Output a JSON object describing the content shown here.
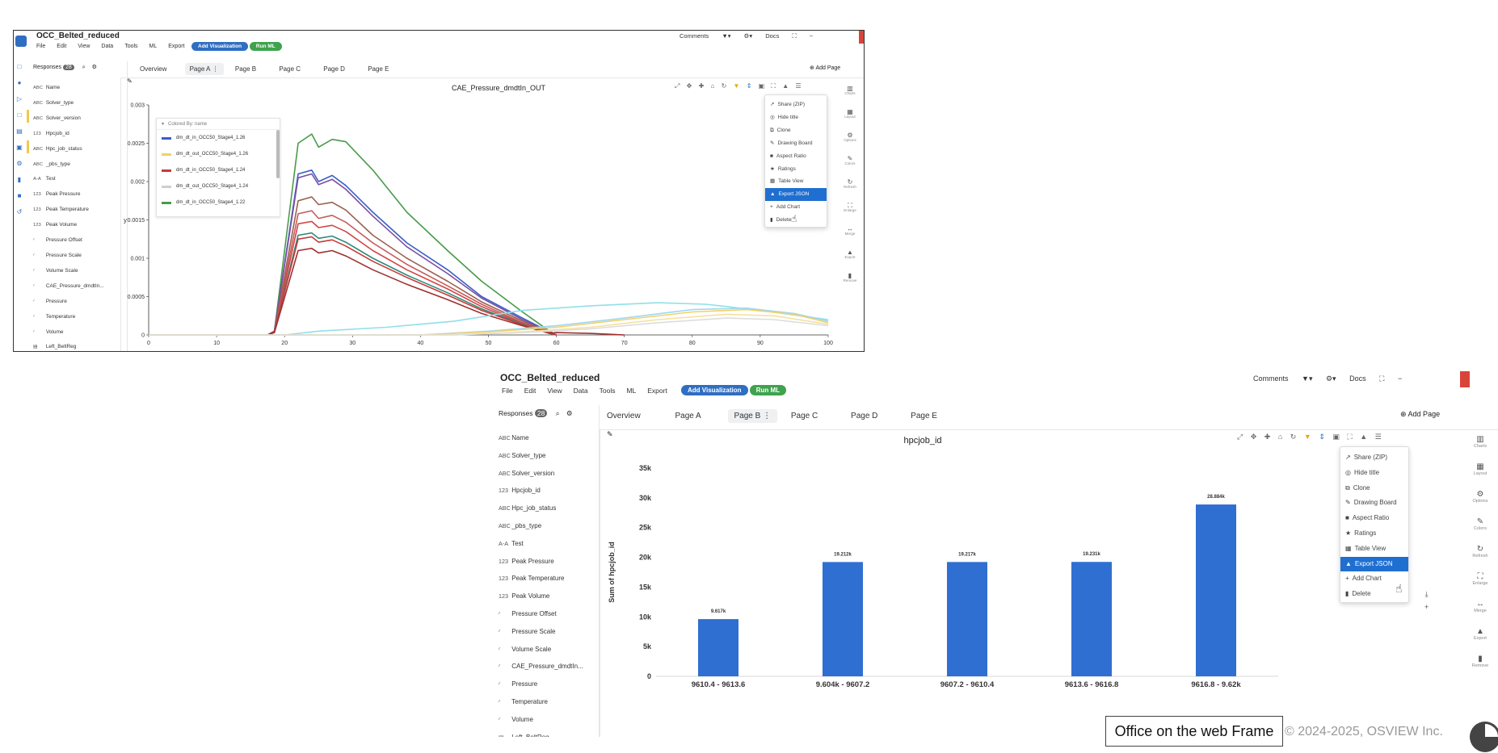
{
  "app": {
    "title": "OCC_Belted_reduced",
    "menu": [
      "File",
      "Edit",
      "View",
      "Data",
      "Tools",
      "ML",
      "Export"
    ],
    "add_visualization": "Add Visualization",
    "run_ml": "Run ML",
    "comments": "Comments",
    "filter": "▼▾",
    "settings": "⚙▾",
    "docs": "Docs",
    "fullscreen": "⛶",
    "minimize": "−",
    "add_page": "Add Page",
    "responses_label": "Responses",
    "responses_count": "28"
  },
  "tabs": [
    "Overview",
    "Page A",
    "Page B",
    "Page C",
    "Page D",
    "Page E"
  ],
  "sidebar_items": [
    {
      "glyph": "ABC",
      "label": "Name"
    },
    {
      "glyph": "ABC",
      "label": "Solver_type"
    },
    {
      "glyph": "ABC",
      "label": "Solver_version"
    },
    {
      "glyph": "123",
      "label": "Hpcjob_id"
    },
    {
      "glyph": "ABC",
      "label": "Hpc_job_status"
    },
    {
      "glyph": "ABC",
      "label": "_pbs_type"
    },
    {
      "glyph": "A-A",
      "label": "Test"
    },
    {
      "glyph": "123",
      "label": "Peak Pressure"
    },
    {
      "glyph": "123",
      "label": "Peak Temperature"
    },
    {
      "glyph": "123",
      "label": "Peak Volume"
    },
    {
      "glyph": "∕",
      "label": "Pressure Offset"
    },
    {
      "glyph": "∕",
      "label": "Pressure Scale"
    },
    {
      "glyph": "∕",
      "label": "Volume Scale"
    },
    {
      "glyph": "∕",
      "label": "CAE_Pressure_dmdtIn..."
    },
    {
      "glyph": "∕",
      "label": "Pressure"
    },
    {
      "glyph": "∕",
      "label": "Temperature"
    },
    {
      "glyph": "∕",
      "label": "Volume"
    },
    {
      "glyph": "▤",
      "label": "Left_BeltReg"
    }
  ],
  "context_menu": [
    {
      "icon": "↗",
      "label": "Share (ZIP)"
    },
    {
      "icon": "◎",
      "label": "Hide title"
    },
    {
      "icon": "⧉",
      "label": "Clone"
    },
    {
      "icon": "✎",
      "label": "Drawing Board"
    },
    {
      "icon": "■",
      "label": "Aspect Ratio"
    },
    {
      "icon": "★",
      "label": "Ratings"
    },
    {
      "icon": "▦",
      "label": "Table View"
    },
    {
      "icon": "▲",
      "label": "Export JSON"
    },
    {
      "icon": "+",
      "label": "Add Chart"
    },
    {
      "icon": "▮",
      "label": "Delete"
    }
  ],
  "right_rail": [
    {
      "icon": "▥",
      "label": "Charts"
    },
    {
      "icon": "▦",
      "label": "Layout"
    },
    {
      "icon": "⚙",
      "label": "Options"
    },
    {
      "icon": "✎",
      "label": "Colors"
    },
    {
      "icon": "↻",
      "label": "Refresh"
    },
    {
      "icon": "⛶",
      "label": "Enlarge"
    },
    {
      "icon": "↔",
      "label": "Merge"
    },
    {
      "icon": "▲",
      "label": "Export"
    },
    {
      "icon": "▮",
      "label": "Remove"
    }
  ],
  "left_rail": [
    "□",
    "●",
    "▷",
    "□",
    "▤",
    "▣",
    "⚙",
    "▮",
    "■",
    "↺"
  ],
  "panel_a": {
    "chart_data": {
      "type": "line",
      "title": "CAE_Pressure_dmdtIn_OUT",
      "ylabel": "y",
      "xlim": [
        0,
        100
      ],
      "ylim": [
        0,
        0.003
      ],
      "x_ticks": [
        0,
        10,
        20,
        30,
        40,
        50,
        60,
        70,
        80,
        90,
        100
      ],
      "y_ticks": [
        0,
        0.0005,
        0.001,
        0.0015,
        0.002,
        0.0025,
        0.003
      ],
      "y_tick_labels": [
        "0",
        "0.0005",
        "0.001",
        "0.0015",
        "0.002",
        "0.0025",
        "0.003"
      ],
      "legend_title": "Colored By: name",
      "legend": [
        {
          "name": "dm_dt_in_OCC50_Stage4_1.26",
          "color": "#3a5fc8"
        },
        {
          "name": "dm_dt_out_OCC50_Stage4_1.26",
          "color": "#f2d06b"
        },
        {
          "name": "dm_dt_in_OCC50_Stage4_1.24",
          "color": "#c83a3a"
        },
        {
          "name": "dm_dt_out_OCC50_Stage4_1.24",
          "color": "#cfcfcf"
        },
        {
          "name": "dm_dt_in_OCC50_Stage4_1.22",
          "color": "#4a9a4a"
        }
      ],
      "series": [
        {
          "color": "#4a9a4a",
          "x": [
            0,
            17.5,
            18.5,
            22,
            24,
            25,
            27,
            29,
            33,
            38,
            44,
            49,
            55,
            59,
            60
          ],
          "y": [
            0,
            0,
            5e-05,
            0.0025,
            0.00262,
            0.00245,
            0.00255,
            0.00252,
            0.00215,
            0.0016,
            0.0011,
            0.0007,
            0.0003,
            5e-05,
            0
          ]
        },
        {
          "color": "#3a5fc8",
          "x": [
            0,
            17.5,
            18.5,
            22,
            24,
            25,
            27,
            29,
            33,
            38,
            44,
            49,
            55,
            59,
            60
          ],
          "y": [
            0,
            0,
            5e-05,
            0.0021,
            0.00215,
            0.002,
            0.00208,
            0.00195,
            0.0016,
            0.0012,
            0.00085,
            0.0005,
            0.00022,
            4e-05,
            0
          ]
        },
        {
          "color": "#7a4fa0",
          "x": [
            0,
            17.5,
            18.5,
            22,
            24,
            25,
            27,
            29,
            33,
            38,
            44,
            49,
            55,
            59,
            60
          ],
          "y": [
            0,
            0,
            5e-05,
            0.00205,
            0.0021,
            0.00196,
            0.00203,
            0.0019,
            0.00155,
            0.00115,
            0.0008,
            0.00048,
            0.0002,
            4e-05,
            0
          ]
        },
        {
          "color": "#9a6050",
          "x": [
            0,
            17.5,
            18.5,
            22,
            24,
            25,
            27,
            29,
            33,
            38,
            44,
            49,
            55,
            59,
            60
          ],
          "y": [
            0,
            0,
            4e-05,
            0.00175,
            0.0018,
            0.0017,
            0.00173,
            0.00163,
            0.0013,
            0.001,
            0.0007,
            0.00043,
            0.00018,
            3e-05,
            0
          ]
        },
        {
          "color": "#c85a5a",
          "x": [
            0,
            17.5,
            18.5,
            22,
            24,
            25,
            27,
            29,
            33,
            38,
            44,
            49,
            55,
            59,
            60
          ],
          "y": [
            0,
            0,
            4e-05,
            0.00158,
            0.00162,
            0.00152,
            0.00156,
            0.00147,
            0.0012,
            0.00092,
            0.00064,
            0.0004,
            0.00016,
            3e-05,
            0
          ]
        },
        {
          "color": "#d04848",
          "x": [
            0,
            17.5,
            18.5,
            22,
            24,
            25,
            27,
            29,
            33,
            38,
            44,
            49,
            55,
            59,
            60
          ],
          "y": [
            0,
            0,
            4e-05,
            0.00145,
            0.00148,
            0.0014,
            0.00143,
            0.00135,
            0.0011,
            0.00085,
            0.0006,
            0.00037,
            0.00015,
            3e-05,
            0
          ]
        },
        {
          "color": "#2f8a7a",
          "x": [
            0,
            17.5,
            18.5,
            22,
            24,
            25,
            27,
            29,
            33,
            38,
            44,
            49,
            55,
            59,
            60
          ],
          "y": [
            0,
            0,
            4e-05,
            0.0013,
            0.00133,
            0.00126,
            0.00129,
            0.00121,
            0.001,
            0.00078,
            0.00055,
            0.00034,
            0.00014,
            2e-05,
            0
          ]
        },
        {
          "color": "#c83a3a",
          "x": [
            0,
            17.5,
            18.5,
            22,
            24,
            25,
            27,
            29,
            33,
            38,
            44,
            49,
            55,
            59,
            60
          ],
          "y": [
            0,
            0,
            4e-05,
            0.00125,
            0.00128,
            0.00121,
            0.00124,
            0.00116,
            0.00096,
            0.00075,
            0.00052,
            0.00032,
            0.00013,
            2e-05,
            0
          ]
        },
        {
          "color": "#a03030",
          "x": [
            0,
            17.5,
            18.5,
            22,
            24,
            25,
            27,
            29,
            33,
            38,
            44,
            49,
            55,
            59,
            60,
            65,
            70
          ],
          "y": [
            0,
            0,
            3e-05,
            0.0011,
            0.00113,
            0.00107,
            0.0011,
            0.00103,
            0.00085,
            0.00066,
            0.00046,
            0.00028,
            0.00012,
            2e-05,
            3e-05,
            2e-05,
            0
          ]
        },
        {
          "color": "#8fe0ea",
          "x": [
            0,
            20,
            25,
            35,
            45,
            55,
            65,
            75,
            82,
            90,
            100
          ],
          "y": [
            0,
            0,
            5e-05,
            0.0001,
            0.00018,
            0.00032,
            0.00038,
            0.00042,
            0.0004,
            0.00032,
            0.0002
          ]
        },
        {
          "color": "#9fd8f0",
          "x": [
            0,
            40,
            50,
            60,
            70,
            80,
            88,
            95,
            100
          ],
          "y": [
            0,
            0,
            5e-05,
            0.00012,
            0.00022,
            0.00033,
            0.00035,
            0.00028,
            0.00018
          ]
        },
        {
          "color": "#f2d06b",
          "x": [
            0,
            40,
            50,
            60,
            70,
            80,
            88,
            95,
            100
          ],
          "y": [
            0,
            0,
            4e-05,
            0.0001,
            0.0002,
            0.0003,
            0.00033,
            0.00027,
            0.00016
          ]
        },
        {
          "color": "#f6e0a0",
          "x": [
            0,
            45,
            55,
            65,
            75,
            85,
            92,
            100
          ],
          "y": [
            0,
            0,
            4e-05,
            0.0001,
            0.0002,
            0.00027,
            0.00025,
            0.00014
          ]
        },
        {
          "color": "#dddddd",
          "x": [
            0,
            45,
            55,
            65,
            75,
            85,
            92,
            100
          ],
          "y": [
            0,
            0,
            3e-05,
            8e-05,
            0.00016,
            0.00022,
            0.0002,
            0.00012
          ]
        }
      ]
    }
  },
  "panel_b": {
    "chart_data": {
      "type": "bar",
      "title": "hpcjob_id",
      "ylabel": "Sum of hpcjob_id",
      "ylim": [
        0,
        35000
      ],
      "y_ticks": [
        0,
        5000,
        10000,
        15000,
        20000,
        25000,
        30000,
        35000
      ],
      "y_tick_labels": [
        "0",
        "5k",
        "10k",
        "15k",
        "20k",
        "25k",
        "30k",
        "35k"
      ],
      "categories": [
        "9610.4 - 9613.6",
        "9.604k - 9607.2",
        "9607.2 - 9610.4",
        "9613.6 - 9616.8",
        "9616.8 - 9.62k"
      ],
      "values": [
        9617,
        19212,
        19217,
        19231,
        28884
      ],
      "value_labels": [
        "9.617k",
        "19.212k",
        "19.217k",
        "19.231k",
        "28.884k"
      ],
      "color": "#2f6fd1"
    }
  },
  "overlay": {
    "frame_tip": "Office on the web Frame",
    "footer_partial": "© 2024-2025, OSVIEW Inc."
  }
}
